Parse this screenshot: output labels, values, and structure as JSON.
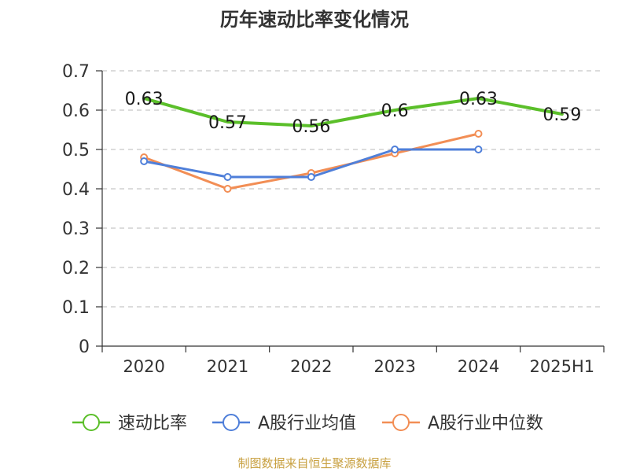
{
  "chart_data": {
    "type": "line",
    "title": "历年速动比率变化情况",
    "categories": [
      "2020",
      "2021",
      "2022",
      "2023",
      "2024",
      "2025H1"
    ],
    "y_ticks": [
      "0",
      "0.1",
      "0.2",
      "0.3",
      "0.4",
      "0.5",
      "0.6",
      "0.7"
    ],
    "ylim": [
      0,
      0.7
    ],
    "grid": "horizontal dashed",
    "legend_position": "bottom",
    "series": [
      {
        "name": "速动比率",
        "color": "#5bbf2a",
        "values": [
          0.63,
          0.57,
          0.56,
          0.6,
          0.63,
          0.59
        ],
        "labels": [
          "0.63",
          "0.57",
          "0.56",
          "0.6",
          "0.63",
          "0.59"
        ]
      },
      {
        "name": "A股行业均值",
        "color": "#4f7fd9",
        "values": [
          0.47,
          0.43,
          0.43,
          0.5,
          0.5,
          null
        ]
      },
      {
        "name": "A股行业中位数",
        "color": "#f28e55",
        "values": [
          0.48,
          0.4,
          0.44,
          0.49,
          0.54,
          null
        ]
      }
    ],
    "source": "制图数据来自恒生聚源数据库",
    "source_color": "#c8a040"
  }
}
